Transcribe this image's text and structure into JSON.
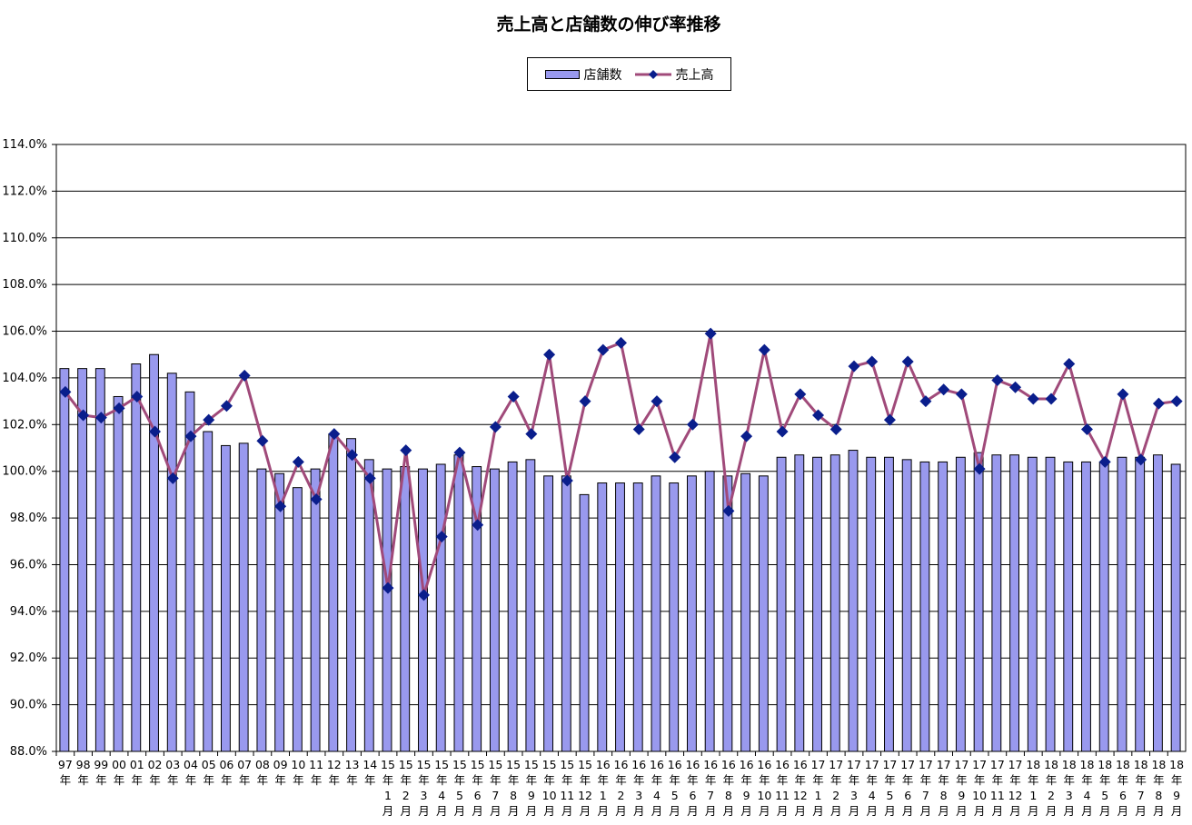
{
  "chart_data": {
    "type": "bar+line",
    "title": "売上高と店舗数の伸び率推移",
    "legend_position": "top-center",
    "grid": true,
    "ylim": [
      88.0,
      114.0
    ],
    "y_ticks": [
      "88.0%",
      "90.0%",
      "92.0%",
      "94.0%",
      "96.0%",
      "98.0%",
      "100.0%",
      "102.0%",
      "104.0%",
      "106.0%",
      "108.0%",
      "110.0%",
      "112.0%",
      "114.0%"
    ],
    "categories": [
      [
        "97",
        "年"
      ],
      [
        "98",
        "年"
      ],
      [
        "99",
        "年"
      ],
      [
        "00",
        "年"
      ],
      [
        "01",
        "年"
      ],
      [
        "02",
        "年"
      ],
      [
        "03",
        "年"
      ],
      [
        "04",
        "年"
      ],
      [
        "05",
        "年"
      ],
      [
        "06",
        "年"
      ],
      [
        "07",
        "年"
      ],
      [
        "08",
        "年"
      ],
      [
        "09",
        "年"
      ],
      [
        "10",
        "年"
      ],
      [
        "11",
        "年"
      ],
      [
        "12",
        "年"
      ],
      [
        "13",
        "年"
      ],
      [
        "14",
        "年"
      ],
      [
        "15",
        "年",
        "1",
        "月"
      ],
      [
        "15",
        "年",
        "2",
        "月"
      ],
      [
        "15",
        "年",
        "3",
        "月"
      ],
      [
        "15",
        "年",
        "4",
        "月"
      ],
      [
        "15",
        "年",
        "5",
        "月"
      ],
      [
        "15",
        "年",
        "6",
        "月"
      ],
      [
        "15",
        "年",
        "7",
        "月"
      ],
      [
        "15",
        "年",
        "8",
        "月"
      ],
      [
        "15",
        "年",
        "9",
        "月"
      ],
      [
        "15",
        "年",
        "10",
        "月"
      ],
      [
        "15",
        "年",
        "11",
        "月"
      ],
      [
        "15",
        "年",
        "12",
        "月"
      ],
      [
        "16",
        "年",
        "1",
        "月"
      ],
      [
        "16",
        "年",
        "2",
        "月"
      ],
      [
        "16",
        "年",
        "3",
        "月"
      ],
      [
        "16",
        "年",
        "4",
        "月"
      ],
      [
        "16",
        "年",
        "5",
        "月"
      ],
      [
        "16",
        "年",
        "6",
        "月"
      ],
      [
        "16",
        "年",
        "7",
        "月"
      ],
      [
        "16",
        "年",
        "8",
        "月"
      ],
      [
        "16",
        "年",
        "9",
        "月"
      ],
      [
        "16",
        "年",
        "10",
        "月"
      ],
      [
        "16",
        "年",
        "11",
        "月"
      ],
      [
        "16",
        "年",
        "12",
        "月"
      ],
      [
        "17",
        "年",
        "1",
        "月"
      ],
      [
        "17",
        "年",
        "2",
        "月"
      ],
      [
        "17",
        "年",
        "3",
        "月"
      ],
      [
        "17",
        "年",
        "4",
        "月"
      ],
      [
        "17",
        "年",
        "5",
        "月"
      ],
      [
        "17",
        "年",
        "6",
        "月"
      ],
      [
        "17",
        "年",
        "7",
        "月"
      ],
      [
        "17",
        "年",
        "8",
        "月"
      ],
      [
        "17",
        "年",
        "9",
        "月"
      ],
      [
        "17",
        "年",
        "10",
        "月"
      ],
      [
        "17",
        "年",
        "11",
        "月"
      ],
      [
        "17",
        "年",
        "12",
        "月"
      ],
      [
        "18",
        "年",
        "1",
        "月"
      ],
      [
        "18",
        "年",
        "2",
        "月"
      ],
      [
        "18",
        "年",
        "3",
        "月"
      ],
      [
        "18",
        "年",
        "4",
        "月"
      ],
      [
        "18",
        "年",
        "5",
        "月"
      ],
      [
        "18",
        "年",
        "6",
        "月"
      ],
      [
        "18",
        "年",
        "7",
        "月"
      ],
      [
        "18",
        "年",
        "8",
        "月"
      ],
      [
        "18",
        "年",
        "9",
        "月"
      ]
    ],
    "series": [
      {
        "name": "店舗数",
        "type": "bar",
        "color": "#9999ee",
        "values": [
          104.4,
          104.4,
          104.4,
          103.2,
          104.6,
          105.0,
          104.2,
          103.4,
          101.7,
          101.1,
          101.2,
          100.1,
          99.9,
          99.3,
          100.1,
          101.6,
          101.4,
          100.5,
          100.1,
          100.2,
          100.1,
          100.3,
          100.7,
          100.2,
          100.1,
          100.4,
          100.5,
          99.8,
          99.8,
          99.0,
          99.5,
          99.5,
          99.5,
          99.8,
          99.5,
          99.8,
          100.0,
          99.8,
          99.9,
          99.8,
          100.6,
          100.7,
          100.6,
          100.7,
          100.9,
          100.6,
          100.6,
          100.5,
          100.4,
          100.4,
          100.6,
          100.8,
          100.7,
          100.7,
          100.6,
          100.6,
          100.4,
          100.4,
          100.4,
          100.6,
          100.6,
          100.7,
          100.3
        ]
      },
      {
        "name": "売上高",
        "type": "line",
        "color": "#a04a7a",
        "marker_color": "#0a1e8c",
        "values": [
          103.4,
          102.4,
          102.3,
          102.7,
          103.2,
          101.7,
          99.7,
          101.5,
          102.2,
          102.8,
          104.1,
          101.3,
          98.5,
          100.4,
          98.8,
          101.6,
          100.7,
          99.7,
          95.0,
          100.9,
          94.7,
          97.2,
          100.8,
          97.7,
          101.9,
          103.2,
          101.6,
          105.0,
          99.6,
          103.0,
          105.2,
          105.5,
          101.8,
          103.0,
          100.6,
          102.0,
          105.9,
          98.3,
          101.5,
          105.2,
          101.7,
          103.3,
          102.4,
          101.8,
          104.5,
          104.7,
          102.2,
          104.7,
          103.0,
          103.5,
          103.3,
          100.1,
          103.9,
          103.6,
          103.1,
          103.1,
          104.6,
          101.8,
          100.4,
          103.3,
          100.5,
          102.9,
          103.0
        ]
      }
    ]
  }
}
